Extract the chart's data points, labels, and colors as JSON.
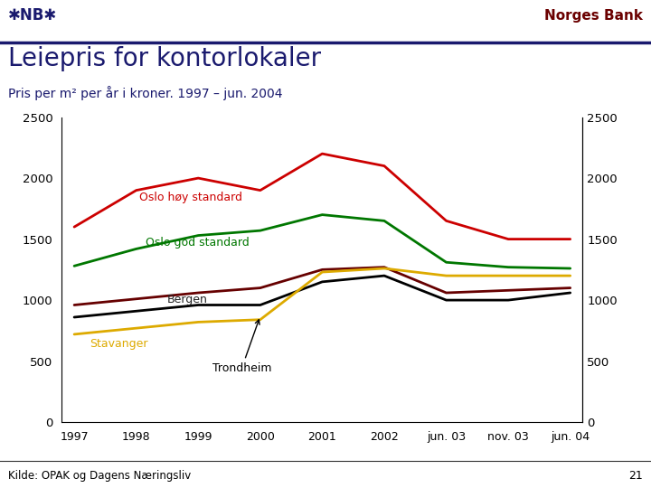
{
  "title": "Leiepris for kontorlokaler",
  "subtitle": "Pris per m² per år i kroner. 1997 – jun. 2004",
  "header_right": "Norges Bank",
  "source": "Kilde: OPAK og Dagens Næringsliv",
  "page_number": "21",
  "x_labels": [
    "1997",
    "1998",
    "1999",
    "2000",
    "2001",
    "2002",
    "jun. 03",
    "nov. 03",
    "jun. 04"
  ],
  "x_positions": [
    0,
    1,
    2,
    3,
    4,
    5,
    6,
    7,
    8
  ],
  "ylim": [
    0,
    2500
  ],
  "yticks": [
    0,
    500,
    1000,
    1500,
    2000,
    2500
  ],
  "series": {
    "oslo_hoy": {
      "label": "Oslo høy standard",
      "color": "#cc0000",
      "values": [
        1600,
        1900,
        2000,
        1900,
        2200,
        2100,
        1650,
        1500,
        1500
      ]
    },
    "oslo_god": {
      "label": "Oslo god standard",
      "color": "#007700",
      "values": [
        1280,
        1420,
        1530,
        1570,
        1700,
        1650,
        1310,
        1270,
        1260
      ]
    },
    "bergen": {
      "label": "Bergen",
      "color": "#660000",
      "values": [
        960,
        1010,
        1060,
        1100,
        1250,
        1270,
        1060,
        1080,
        1100
      ]
    },
    "trondheim": {
      "label": "Trondheim",
      "color": "#000000",
      "values": [
        860,
        910,
        960,
        960,
        1150,
        1200,
        1000,
        1000,
        1060
      ]
    },
    "stavanger": {
      "label": "Stavanger",
      "color": "#ddaa00",
      "values": [
        720,
        770,
        820,
        840,
        1230,
        1260,
        1200,
        1200,
        1200
      ]
    }
  },
  "bg_color": "#ffffff",
  "plot_bg": "#ffffff",
  "header_color": "#1a1a6e",
  "header_text_color": "#6b0000",
  "line_width": 2.0,
  "title_color": "#1a1a6e",
  "subtitle_color": "#1a1a6e"
}
